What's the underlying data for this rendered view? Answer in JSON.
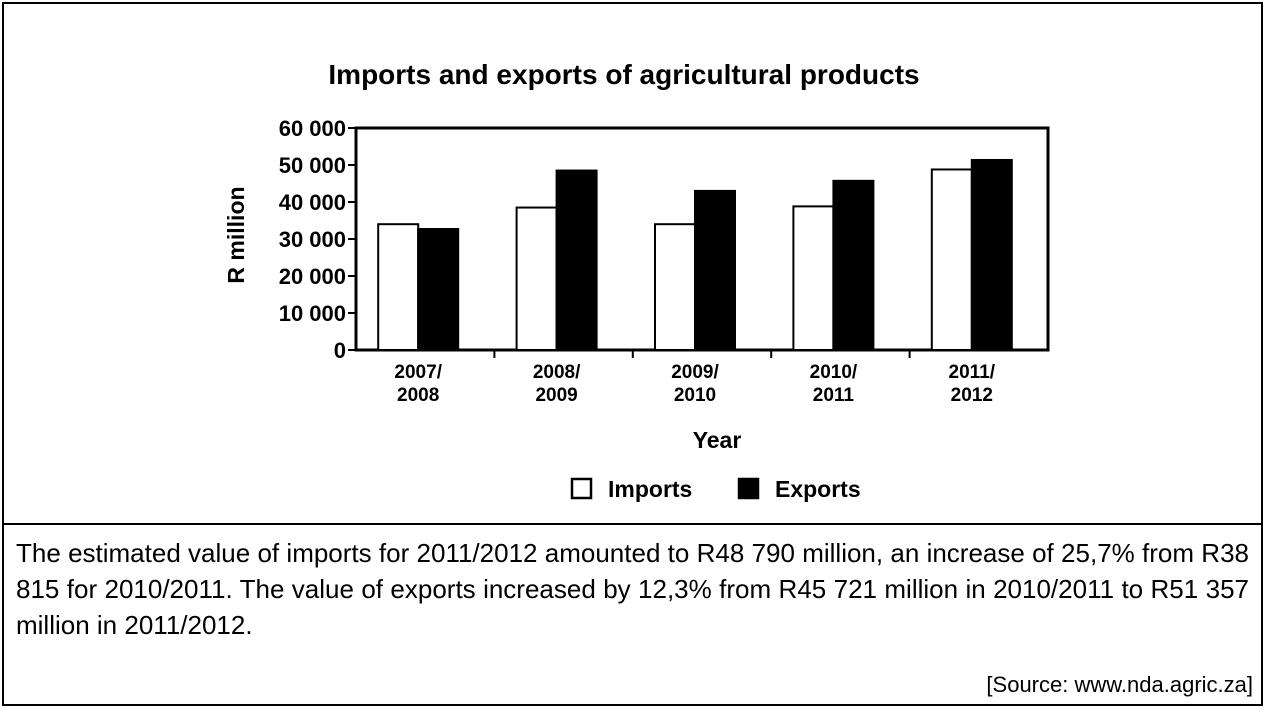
{
  "chart_data": {
    "type": "bar",
    "title": "Imports and exports of agricultural products",
    "xlabel": "Year",
    "ylabel": "R million",
    "ylim": [
      0,
      60000
    ],
    "yticks": [
      0,
      10000,
      20000,
      30000,
      40000,
      50000,
      60000
    ],
    "ytick_labels": [
      "0",
      "10 000",
      "20 000",
      "30 000",
      "40 000",
      "50 000",
      "60 000"
    ],
    "categories": [
      [
        "2007/",
        "2008"
      ],
      [
        "2008/",
        "2009"
      ],
      [
        "2009/",
        "2010"
      ],
      [
        "2010/",
        "2011"
      ],
      [
        "2011/",
        "2012"
      ]
    ],
    "series": [
      {
        "name": "Imports",
        "color": "#ffffff",
        "values": [
          34000,
          38500,
          34000,
          38815,
          48790
        ]
      },
      {
        "name": "Exports",
        "color": "#000000",
        "values": [
          32700,
          48500,
          43000,
          45721,
          51357
        ]
      }
    ],
    "legend_position": "bottom",
    "grid": false
  },
  "description": {
    "paragraph": "The estimated value of imports for 2011/2012 amounted to R48 790 million, an increase of 25,7% from R38 815 for 2010/2011. The value of exports increased by 12,3% from R45 721 million in 2010/2011 to R51 357 million in 2011/2012.",
    "source": "[Source:  www.nda.agric.za]"
  }
}
